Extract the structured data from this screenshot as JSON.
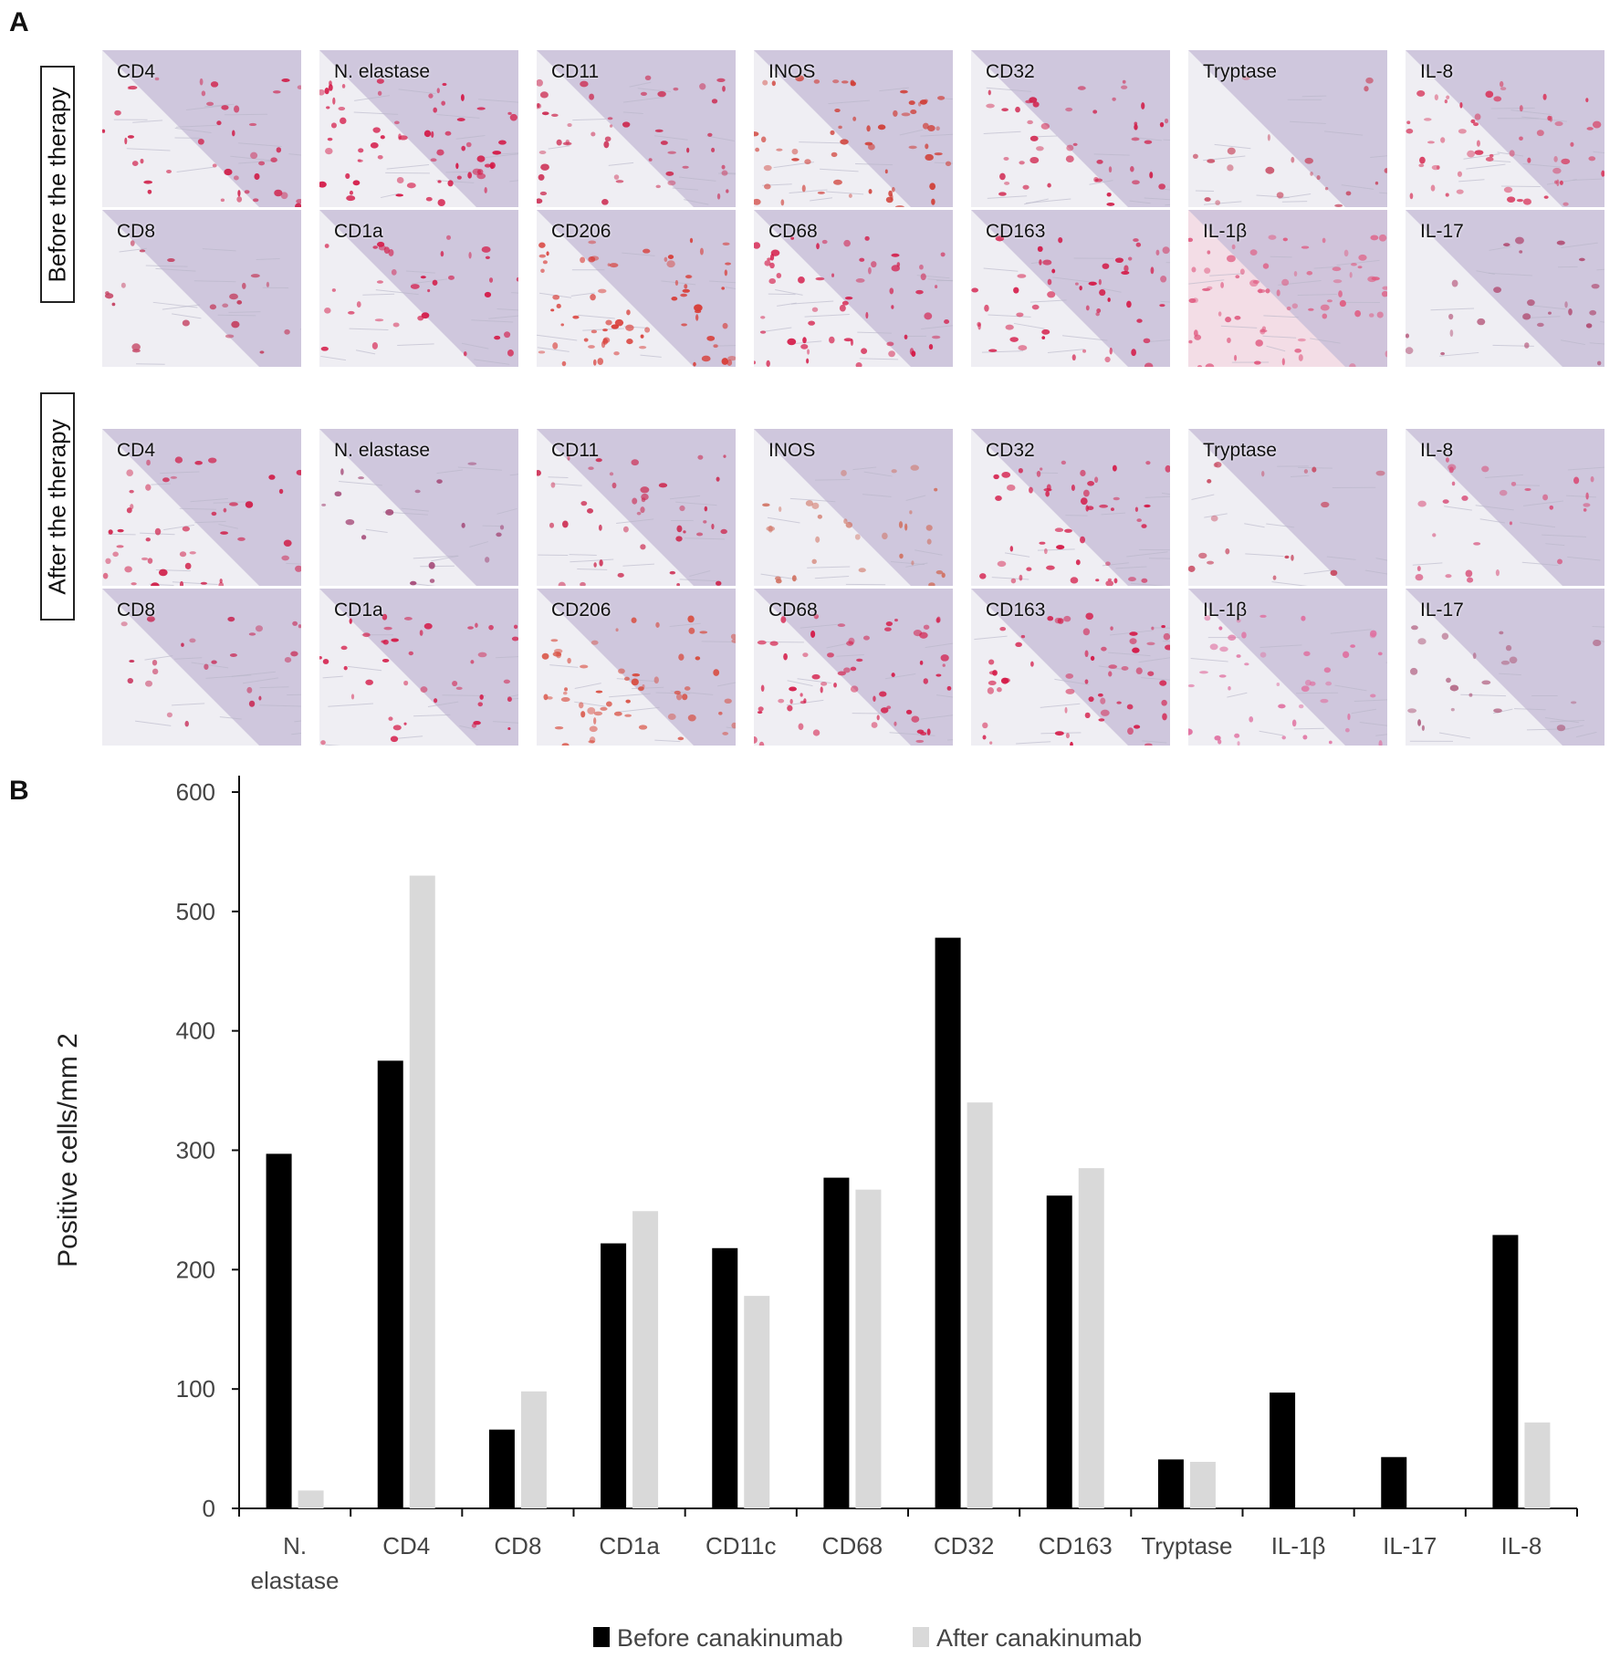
{
  "panel_a": {
    "letter": "A",
    "rows": [
      {
        "label": "Before the therapy",
        "tiles": [
          {
            "label": "CD4",
            "stain": "#d0204a",
            "density": 0.45
          },
          {
            "label": "N. elastase",
            "stain": "#d41846",
            "density": 0.8
          },
          {
            "label": "CD11",
            "stain": "#cc2a50",
            "density": 0.55
          },
          {
            "label": "INOS",
            "stain": "#d04038",
            "density": 0.7
          },
          {
            "label": "CD32",
            "stain": "#d0204a",
            "density": 0.5
          },
          {
            "label": "Tryptase",
            "stain": "#c84860",
            "density": 0.15
          },
          {
            "label": "IL-8",
            "stain": "#d83a5e",
            "density": 0.7
          },
          {
            "label": "CD8",
            "stain": "#c44060",
            "density": 0.15
          },
          {
            "label": "CD1a",
            "stain": "#d41846",
            "density": 0.35
          },
          {
            "label": "CD206",
            "stain": "#d83a34",
            "density": 0.85
          },
          {
            "label": "CD68",
            "stain": "#d41846",
            "density": 0.7
          },
          {
            "label": "CD163",
            "stain": "#d41846",
            "density": 0.6
          },
          {
            "label": "IL-1β",
            "stain": "#e05a80",
            "density": 0.9
          },
          {
            "label": "IL-17",
            "stain": "#b04a70",
            "density": 0.2
          }
        ]
      },
      {
        "label": "After the therapy",
        "tiles": [
          {
            "label": "CD4",
            "stain": "#d0204a",
            "density": 0.5
          },
          {
            "label": "N. elastase",
            "stain": "#a04070",
            "density": 0.1
          },
          {
            "label": "CD11",
            "stain": "#cc2a50",
            "density": 0.45
          },
          {
            "label": "INOS",
            "stain": "#d07060",
            "density": 0.3
          },
          {
            "label": "CD32",
            "stain": "#d41846",
            "density": 0.6
          },
          {
            "label": "Tryptase",
            "stain": "#c84860",
            "density": 0.1
          },
          {
            "label": "IL-8",
            "stain": "#d8507a",
            "density": 0.25
          },
          {
            "label": "CD8",
            "stain": "#c8305a",
            "density": 0.2
          },
          {
            "label": "CD1a",
            "stain": "#d41846",
            "density": 0.45
          },
          {
            "label": "CD206",
            "stain": "#d84a3c",
            "density": 0.7
          },
          {
            "label": "CD68",
            "stain": "#d41846",
            "density": 0.75
          },
          {
            "label": "CD163",
            "stain": "#d41846",
            "density": 0.7
          },
          {
            "label": "IL-1β",
            "stain": "#e070a0",
            "density": 0.5
          },
          {
            "label": "IL-17",
            "stain": "#b06080",
            "density": 0.15
          }
        ]
      }
    ]
  },
  "chart_data": {
    "type": "bar",
    "panel_letter": "B",
    "categories": [
      "N. elastase",
      "CD4",
      "CD8",
      "CD1a",
      "CD11c",
      "CD68",
      "CD32",
      "CD163",
      "Tryptase",
      "IL-1β",
      "IL-17",
      "IL-8"
    ],
    "series": [
      {
        "name": "Before canakinumab",
        "color": "#000000",
        "values": [
          297,
          375,
          66,
          222,
          218,
          277,
          478,
          262,
          41,
          97,
          43,
          229
        ]
      },
      {
        "name": "After canakinumab",
        "color": "#d9d9d9",
        "values": [
          15,
          530,
          98,
          249,
          178,
          267,
          340,
          285,
          39,
          0,
          0,
          72
        ]
      }
    ],
    "title": "",
    "xlabel": "",
    "ylabel": "Positive cells/mm 2",
    "ylim": [
      0,
      600
    ],
    "yticks": [
      0,
      100,
      200,
      300,
      400,
      500,
      600
    ],
    "grid": false,
    "legend_position": "bottom"
  }
}
